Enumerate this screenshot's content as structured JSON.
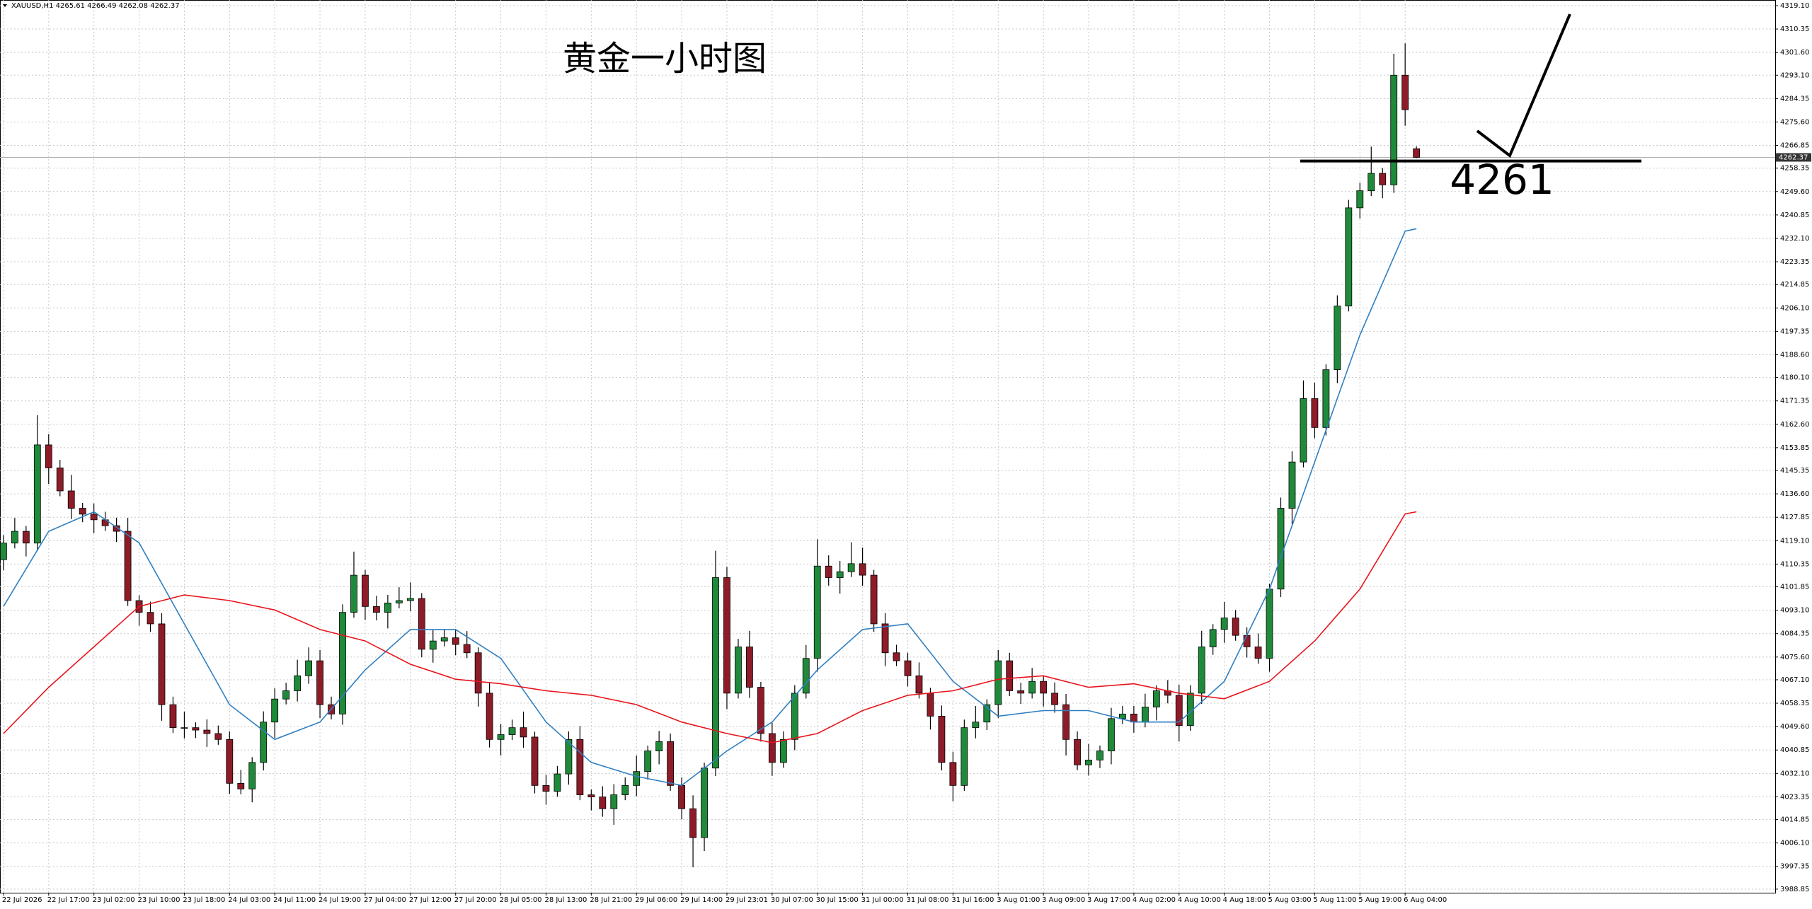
{
  "chart_data": {
    "type": "candlestick",
    "title": "XAUUSD,H1  4265.61 4266.49 4262.08 4262.37",
    "annotation": "黄金一小时图",
    "level": 4261,
    "last_price": 4262.37,
    "up_color": "#1f8a3a",
    "down_color": "#8e1b28",
    "wick_color": "#000000",
    "categories": [
      "22 Jul 2026",
      null,
      null,
      null,
      "22 Jul 17:00",
      null,
      null,
      null,
      "23 Jul 02:00",
      null,
      null,
      null,
      "23 Jul 10:00",
      null,
      null,
      null,
      "23 Jul 18:00",
      null,
      null,
      null,
      "24 Jul 03:00",
      null,
      null,
      null,
      "24 Jul 11:00",
      null,
      null,
      null,
      "24 Jul 19:00",
      null,
      null,
      null,
      "27 Jul 04:00",
      null,
      null,
      null,
      "27 Jul 12:00",
      null,
      null,
      null,
      "27 Jul 20:00",
      null,
      null,
      null,
      "28 Jul 05:00",
      null,
      null,
      null,
      "28 Jul 13:00",
      null,
      null,
      null,
      "28 Jul 21:00",
      null,
      null,
      null,
      "29 Jul 06:00",
      null,
      null,
      null,
      "29 Jul 14:00",
      null,
      null,
      null,
      "29 Jul 23:01",
      null,
      null,
      null,
      "30 Jul 07:00",
      null,
      null,
      null,
      "30 Jul 15:00",
      null,
      null,
      null,
      "31 Jul 00:00",
      null,
      null,
      null,
      "31 Jul 08:00",
      null,
      null,
      null,
      "31 Jul 16:00",
      null,
      null,
      null,
      "3 Aug 01:00",
      null,
      null,
      null,
      "3 Aug 09:00",
      null,
      null,
      null,
      "3 Aug 17:00",
      null,
      null,
      null,
      "4 Aug 02:00",
      null,
      null,
      null,
      "4 Aug 10:00",
      null,
      null,
      null,
      "4 Aug 18:00",
      null,
      null,
      null,
      "5 Aug 03:00",
      null,
      null,
      null,
      "5 Aug 11:00",
      null,
      null,
      null,
      "5 Aug 19:00",
      null,
      null,
      null,
      "6 Aug 04:00",
      null
    ],
    "open": [
      4112.0,
      4118.2,
      4122.6,
      4118.2,
      4154.9,
      4146.3,
      4137.7,
      4131.2,
      4129.0,
      4126.9,
      4124.7,
      4122.6,
      4096.7,
      4092.3,
      4088.0,
      4057.8,
      4049.2,
      4049.2,
      4048.3,
      4047.0,
      4044.8,
      4028.4,
      4026.3,
      4036.2,
      4051.3,
      4059.9,
      4063.0,
      4068.6,
      4074.2,
      4057.8,
      4054.3,
      4092.3,
      4106.2,
      4094.5,
      4092.3,
      4095.8,
      4096.7,
      4097.5,
      4078.5,
      4081.6,
      4082.8,
      4080.3,
      4077.2,
      4062.1,
      4044.8,
      4046.6,
      4049.2,
      4045.7,
      4027.6,
      4025.4,
      4031.9,
      4044.8,
      4024.1,
      4023.3,
      4018.9,
      4024.1,
      4027.6,
      4032.8,
      4040.5,
      4044.0,
      4027.6,
      4018.9,
      4008.1,
      4034.1,
      4105.3,
      4062.1,
      4079.4,
      4064.3,
      4047.0,
      4036.2,
      4044.8,
      4062.1,
      4075.1,
      4109.6,
      4105.3,
      4107.5,
      4110.5,
      4106.2,
      4088.0,
      4077.2,
      4074.2,
      4068.6,
      4062.1,
      4053.5,
      4036.2,
      4027.6,
      4049.2,
      4051.3,
      4057.8,
      4074.2,
      4063.0,
      4062.1,
      4066.5,
      4062.1,
      4057.8,
      4044.8,
      4035.3,
      4037.1,
      4040.5,
      4052.6,
      4054.3,
      4051.3,
      4056.9,
      4063.0,
      4061.3,
      4050.0,
      4062.1,
      4079.4,
      4085.9,
      4090.2,
      4083.7,
      4079.4,
      4075.1,
      4101.0,
      4131.2,
      4148.5,
      4172.2,
      4161.4,
      4183.0,
      4206.8,
      4243.5,
      4249.9,
      4256.4,
      4252.1,
      4293.1,
      4265.61
    ],
    "high": [
      4121.2,
      4127.6,
      4124.6,
      4166.0,
      4158.9,
      4149.3,
      4143.7,
      4133.2,
      4133.0,
      4129.9,
      4127.7,
      4127.6,
      4098.7,
      4096.3,
      4092.0,
      4060.8,
      4055.2,
      4051.2,
      4052.3,
      4050.0,
      4047.8,
      4033.4,
      4038.2,
      4055.3,
      4063.9,
      4066.0,
      4074.6,
      4079.2,
      4078.2,
      4060.8,
      4095.3,
      4115.0,
      4108.2,
      4098.5,
      4098.8,
      4101.7,
      4103.5,
      4099.5,
      4085.6,
      4085.8,
      4085.8,
      4085.3,
      4079.2,
      4066.1,
      4050.6,
      4052.2,
      4055.2,
      4047.7,
      4031.6,
      4034.9,
      4047.8,
      4049.8,
      4026.1,
      4027.3,
      4028.1,
      4030.6,
      4038.8,
      4042.5,
      4048.0,
      4047.0,
      4030.6,
      4023.9,
      4036.1,
      4115.3,
      4109.3,
      4082.4,
      4085.4,
      4066.3,
      4051.0,
      4047.8,
      4065.1,
      4080.1,
      4119.6,
      4113.6,
      4111.5,
      4118.5,
      4116.5,
      4108.2,
      4092.0,
      4080.2,
      4077.2,
      4073.6,
      4064.1,
      4057.5,
      4040.2,
      4052.2,
      4057.3,
      4059.8,
      4078.2,
      4077.2,
      4066.0,
      4071.5,
      4068.5,
      4066.1,
      4061.8,
      4047.8,
      4043.1,
      4042.5,
      4056.6,
      4057.3,
      4057.3,
      4061.9,
      4065.0,
      4067.0,
      4065.3,
      4065.1,
      4085.4,
      4087.9,
      4096.2,
      4093.2,
      4086.7,
      4084.4,
      4103.0,
      4135.2,
      4152.5,
      4179.0,
      4178.2,
      4185.0,
      4210.8,
      4246.5,
      4252.9,
      4266.4,
      4258.4,
      4301.1,
      4305.0,
      4266.49
    ],
    "low": [
      4108.0,
      4116.2,
      4113.2,
      4115.2,
      4140.3,
      4135.7,
      4127.2,
      4126.0,
      4121.9,
      4122.7,
      4118.6,
      4094.7,
      4087.3,
      4085.0,
      4051.8,
      4047.2,
      4045.2,
      4045.3,
      4042.0,
      4042.8,
      4024.4,
      4024.3,
      4021.3,
      4033.2,
      4045.3,
      4057.9,
      4059.0,
      4065.6,
      4052.8,
      4052.3,
      4050.3,
      4090.3,
      4089.5,
      4089.3,
      4086.3,
      4093.8,
      4092.7,
      4075.5,
      4073.5,
      4079.6,
      4076.3,
      4075.2,
      4057.1,
      4041.8,
      4038.8,
      4044.6,
      4041.7,
      4024.6,
      4020.4,
      4023.4,
      4027.9,
      4022.1,
      4018.3,
      4015.9,
      4012.9,
      4022.1,
      4023.6,
      4029.8,
      4035.5,
      4025.6,
      4014.9,
      3997.0,
      4003.1,
      4031.1,
      4056.1,
      4060.1,
      4060.3,
      4044.0,
      4031.2,
      4034.2,
      4040.8,
      4060.1,
      4070.1,
      4102.3,
      4099.3,
      4105.5,
      4102.2,
      4085.0,
      4072.2,
      4072.2,
      4064.6,
      4060.1,
      4048.5,
      4033.2,
      4021.6,
      4025.6,
      4045.2,
      4048.3,
      4052.8,
      4061.0,
      4058.1,
      4060.1,
      4057.1,
      4054.8,
      4038.8,
      4033.3,
      4031.3,
      4034.1,
      4035.5,
      4050.6,
      4047.3,
      4049.3,
      4051.9,
      4058.3,
      4044.0,
      4048.0,
      4058.1,
      4076.4,
      4080.9,
      4081.7,
      4075.4,
      4073.1,
      4070.1,
      4098.0,
      4125.2,
      4146.5,
      4157.4,
      4158.4,
      4178.0,
      4204.8,
      4239.5,
      4247.9,
      4247.1,
      4249.1,
      4274.2,
      4262.08
    ],
    "close": [
      4118.2,
      4122.6,
      4118.2,
      4154.9,
      4146.3,
      4137.7,
      4131.2,
      4129.0,
      4126.9,
      4124.7,
      4122.6,
      4096.7,
      4092.3,
      4088.0,
      4057.8,
      4049.2,
      4049.2,
      4048.3,
      4047.0,
      4044.8,
      4028.4,
      4026.3,
      4036.2,
      4051.3,
      4059.9,
      4063.0,
      4068.6,
      4074.2,
      4057.8,
      4054.3,
      4092.3,
      4106.2,
      4094.5,
      4092.3,
      4095.8,
      4096.7,
      4097.5,
      4078.5,
      4081.6,
      4082.8,
      4080.3,
      4077.2,
      4062.1,
      4044.8,
      4046.6,
      4049.2,
      4045.7,
      4027.6,
      4025.4,
      4031.9,
      4044.8,
      4024.1,
      4023.3,
      4018.9,
      4024.1,
      4027.6,
      4032.8,
      4040.5,
      4044.0,
      4027.6,
      4018.9,
      4008.1,
      4034.1,
      4105.3,
      4062.1,
      4079.4,
      4064.3,
      4047.0,
      4036.2,
      4044.8,
      4062.1,
      4075.1,
      4109.6,
      4105.3,
      4107.5,
      4110.5,
      4106.2,
      4088.0,
      4077.2,
      4074.2,
      4068.6,
      4062.1,
      4053.5,
      4036.2,
      4027.6,
      4049.2,
      4051.3,
      4057.8,
      4074.2,
      4063.0,
      4062.1,
      4066.5,
      4062.1,
      4057.8,
      4044.8,
      4035.3,
      4037.1,
      4040.5,
      4052.6,
      4054.3,
      4051.3,
      4056.9,
      4063.0,
      4061.3,
      4050.0,
      4062.1,
      4079.4,
      4085.9,
      4090.2,
      4083.7,
      4079.4,
      4075.1,
      4101.0,
      4131.2,
      4148.5,
      4172.2,
      4161.4,
      4183.0,
      4206.8,
      4243.5,
      4249.9,
      4256.4,
      4252.1,
      4293.1,
      4280.2,
      4262.37
    ],
    "lines": [
      {
        "color": "#2f7fc1",
        "x": [
          0,
          4,
          8,
          12,
          16,
          20,
          24,
          28,
          32,
          36,
          40,
          44,
          48,
          52,
          56,
          60,
          64,
          68,
          72,
          76,
          80,
          84,
          88,
          92,
          96,
          100,
          104,
          108,
          112,
          116,
          120,
          124,
          125
        ],
        "values": [
          4094.5,
          4122.6,
          4129.9,
          4118.3,
          4088.0,
          4057.8,
          4044.8,
          4051.3,
          4070.8,
          4085.9,
          4085.9,
          4075.1,
          4051.3,
          4036.2,
          4031.0,
          4027.6,
          4040.5,
          4051.3,
          4070.8,
          4085.9,
          4088.0,
          4066.5,
          4053.5,
          4055.6,
          4055.6,
          4051.3,
          4051.3,
          4066.5,
          4101.0,
          4148.5,
          4196.0,
          4234.8,
          4235.7
        ]
      },
      {
        "color": "#e8141c",
        "x": [
          0,
          4,
          8,
          12,
          16,
          20,
          24,
          28,
          32,
          36,
          40,
          44,
          48,
          52,
          56,
          60,
          64,
          68,
          72,
          76,
          80,
          84,
          88,
          92,
          96,
          100,
          104,
          108,
          112,
          116,
          120,
          124,
          125
        ],
        "values": [
          4047.0,
          4064.3,
          4079.4,
          4094.5,
          4098.8,
          4096.7,
          4093.2,
          4085.9,
          4081.6,
          4072.9,
          4067.3,
          4065.6,
          4063.0,
          4061.3,
          4057.8,
          4051.3,
          4047.0,
          4043.6,
          4047.0,
          4055.6,
          4061.3,
          4063.0,
          4067.3,
          4068.6,
          4064.3,
          4065.6,
          4062.1,
          4060.0,
          4066.5,
          4081.6,
          4101.0,
          4129.1,
          4129.9
        ]
      }
    ],
    "ylim": [
      3987.5,
      4321.2
    ],
    "yticks": [
      {
        "value": 4319.1,
        "label": "4319.10"
      },
      4310.35,
      {
        "value": 4301.6,
        "label": "4301.60"
      },
      {
        "value": 4293.1,
        "label": "4293.10"
      },
      4284.35,
      {
        "value": 4275.6,
        "label": "4275.60"
      },
      4266.85,
      4258.35,
      {
        "value": 4249.6,
        "label": "4249.60"
      },
      4240.85,
      {
        "value": 4232.1,
        "label": "4232.10"
      },
      4223.35,
      4214.85,
      {
        "value": 4206.1,
        "label": "4206.10"
      },
      4197.35,
      {
        "value": 4188.6,
        "label": "4188.60"
      },
      {
        "value": 4180.1,
        "label": "4180.10"
      },
      4171.35,
      {
        "value": 4162.6,
        "label": "4162.60"
      },
      4153.85,
      4145.35,
      {
        "value": 4136.6,
        "label": "4136.60"
      },
      4127.85,
      {
        "value": 4119.1,
        "label": "4119.10"
      },
      4110.35,
      4101.85,
      {
        "value": 4093.1,
        "label": "4093.10"
      },
      4084.35,
      {
        "value": 4075.6,
        "label": "4075.60"
      },
      {
        "value": 4067.1,
        "label": "4067.10"
      },
      4058.35,
      {
        "value": 4049.6,
        "label": "4049.60"
      },
      4040.85,
      {
        "value": 4032.1,
        "label": "4032.10"
      },
      4023.35,
      4014.85,
      {
        "value": 4006.1,
        "label": "4006.10"
      },
      3997.35,
      3988.85
    ],
    "grid": true
  }
}
